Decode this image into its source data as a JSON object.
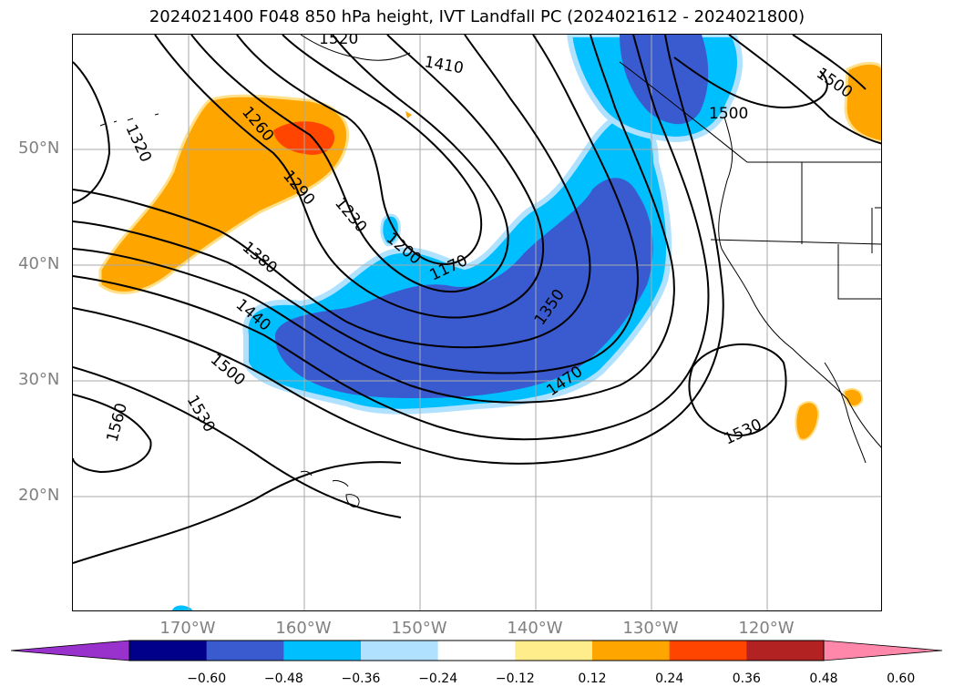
{
  "title": "2024021400 F048 850 hPa height, IVT Landfall PC (2024021612 - 2024021800)",
  "map": {
    "lat_labels": [
      "50°N",
      "40°N",
      "30°N",
      "20°N"
    ],
    "lon_labels": [
      "170°W",
      "160°W",
      "150°W",
      "140°W",
      "130°W",
      "120°W"
    ],
    "contour_labels": [
      "1520",
      "1410",
      "1500",
      "1500",
      "1320",
      "1260",
      "1290",
      "1230",
      "1200",
      "1170",
      "1380",
      "1440",
      "1350",
      "1500",
      "1470",
      "1560",
      "1530",
      "1530"
    ]
  },
  "colorbar": {
    "ticks": [
      "−0.60",
      "−0.48",
      "−0.36",
      "−0.24",
      "−0.12",
      "0.12",
      "0.24",
      "0.36",
      "0.48",
      "0.60"
    ],
    "colors": [
      "#9932cc",
      "#00008b",
      "#3a5bd0",
      "#00bfff",
      "#b0e2ff",
      "#ffffff",
      "#ffec8b",
      "#ffa500",
      "#ff4500",
      "#b22222",
      "#ff88aa"
    ]
  }
}
